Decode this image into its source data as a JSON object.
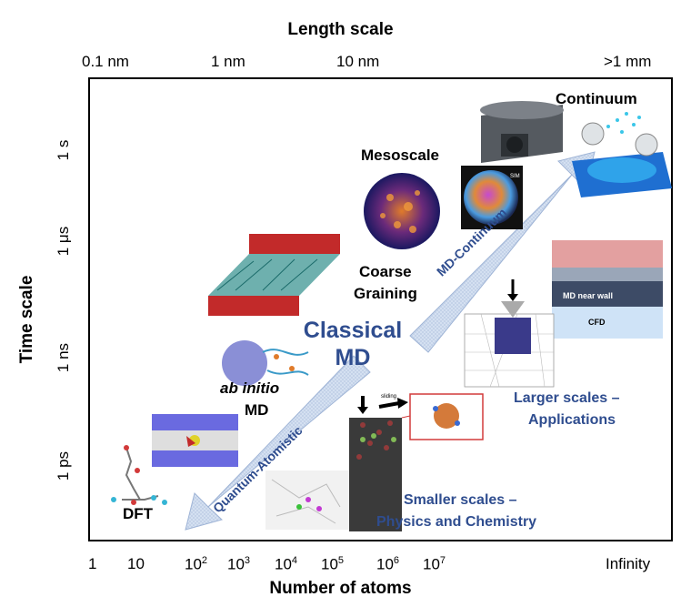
{
  "top_axis": {
    "title": "Length scale",
    "ticks": [
      "0.1 nm",
      "1 nm",
      "10 nm",
      ">1 mm"
    ]
  },
  "bottom_axis": {
    "title": "Number of atoms",
    "ticks": [
      {
        "base": "1",
        "sup": ""
      },
      {
        "base": "10",
        "sup": ""
      },
      {
        "base": "10",
        "sup": "2"
      },
      {
        "base": "10",
        "sup": "3"
      },
      {
        "base": "10",
        "sup": "4"
      },
      {
        "base": "10",
        "sup": "5"
      },
      {
        "base": "10",
        "sup": "6"
      },
      {
        "base": "10",
        "sup": "7"
      },
      {
        "base": "Infinity",
        "sup": ""
      }
    ]
  },
  "left_axis": {
    "title": "Time scale",
    "ticks": [
      "1 s",
      "1 μs",
      "1 ns",
      "1 ps"
    ]
  },
  "labels": {
    "continuum": "Continuum",
    "mesoscale": "Mesoscale",
    "coarse_graining_1": "Coarse",
    "coarse_graining_2": "Graining",
    "classical_md_1": "Classical",
    "classical_md_2": "MD",
    "ab_initio": "ab initio",
    "ab_initio_md": "MD",
    "dft": "DFT",
    "larger_scales_1": "Larger scales –",
    "larger_scales_2": "Applications",
    "smaller_scales_1": "Smaller scales –",
    "smaller_scales_2": "Physics and Chemistry",
    "arrow_md_continuum": "MD-Continuum",
    "arrow_quantum_atomistic": "Quantum-Atomistic",
    "md_near_wall": "MD near wall",
    "cfd": "CFD",
    "sim": "SIM",
    "sliding": "sliding"
  },
  "colors": {
    "accent_blue": "#2f4d8f",
    "arrow_fill": "#d6e2f2",
    "arrow_stroke": "#9fb4d6"
  }
}
